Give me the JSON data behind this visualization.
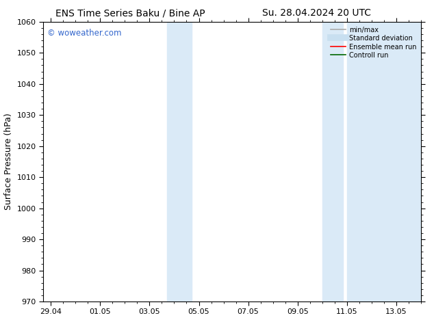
{
  "title_left": "ENS Time Series Baku / Bine AP",
  "title_right": "Su. 28.04.2024 20 UTC",
  "ylabel": "Surface Pressure (hPa)",
  "ylim": [
    970,
    1060
  ],
  "yticks": [
    970,
    980,
    990,
    1000,
    1010,
    1020,
    1030,
    1040,
    1050,
    1060
  ],
  "xtick_labels": [
    "29.04",
    "01.05",
    "03.05",
    "05.05",
    "07.05",
    "09.05",
    "11.05",
    "13.05"
  ],
  "xtick_positions": [
    0,
    2,
    4,
    6,
    8,
    10,
    12,
    14
  ],
  "xmin": -0.3,
  "xmax": 15.0,
  "shaded_bands": [
    {
      "xmin": 4.7,
      "xmax": 5.7,
      "color": "#daeaf7"
    },
    {
      "xmin": 11.0,
      "xmax": 11.85,
      "color": "#daeaf7"
    },
    {
      "xmin": 12.0,
      "xmax": 15.0,
      "color": "#daeaf7"
    }
  ],
  "watermark": "© woweather.com",
  "watermark_color": "#3366cc",
  "background_color": "#ffffff",
  "legend_items": [
    {
      "label": "min/max",
      "color": "#aaaaaa",
      "lw": 1.2,
      "style": "solid"
    },
    {
      "label": "Standard deviation",
      "color": "#c8dff0",
      "lw": 7,
      "style": "solid"
    },
    {
      "label": "Ensemble mean run",
      "color": "#ff0000",
      "lw": 1.2,
      "style": "solid"
    },
    {
      "label": "Controll run",
      "color": "#006600",
      "lw": 1.2,
      "style": "solid"
    }
  ],
  "title_fontsize": 10,
  "tick_fontsize": 8,
  "ylabel_fontsize": 9
}
